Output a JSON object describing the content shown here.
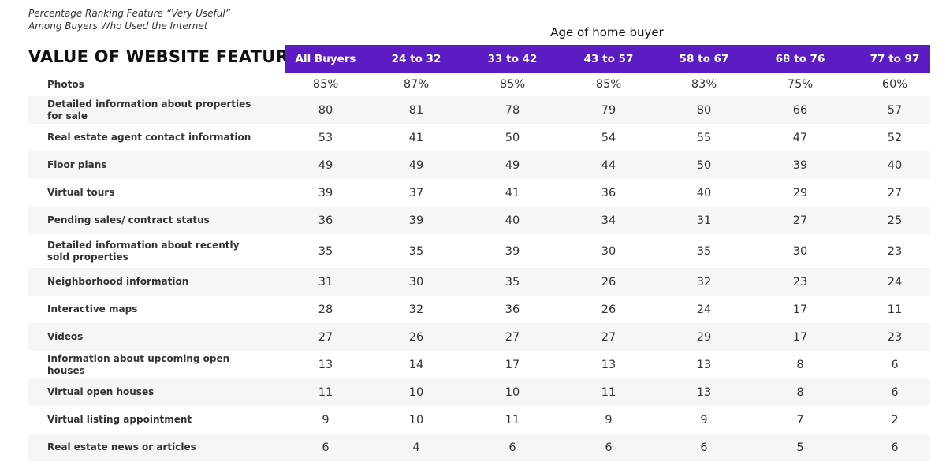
{
  "subtitle": [
    "Percentage Ranking Feature “Very Useful”",
    "Among Buyers Who Used the Internet"
  ],
  "title": "VALUE OF WEBSITE FEATURES",
  "column_group": "Age of home buyer",
  "columns": [
    "All Buyers",
    "24 to 32",
    "33 to 42",
    "43 to 57",
    "58 to 67",
    "68 to 76",
    "77 to 97"
  ],
  "rows": [
    {
      "label": "Photos",
      "values": [
        "85%",
        "87%",
        "85%",
        "85%",
        "83%",
        "75%",
        "60%"
      ]
    },
    {
      "label": "Detailed information about properties for sale",
      "values": [
        "80",
        "81",
        "78",
        "79",
        "80",
        "66",
        "57"
      ]
    },
    {
      "label": "Real estate agent contact information",
      "values": [
        "53",
        "41",
        "50",
        "54",
        "55",
        "47",
        "52"
      ]
    },
    {
      "label": "Floor plans",
      "values": [
        "49",
        "49",
        "49",
        "44",
        "50",
        "39",
        "40"
      ]
    },
    {
      "label": "Virtual tours",
      "values": [
        "39",
        "37",
        "41",
        "36",
        "40",
        "29",
        "27"
      ]
    },
    {
      "label": "Pending sales/ contract status",
      "values": [
        "36",
        "39",
        "40",
        "34",
        "31",
        "27",
        "25"
      ]
    },
    {
      "label": "Detailed information about recently sold properties",
      "values": [
        "35",
        "35",
        "39",
        "30",
        "35",
        "30",
        "23"
      ]
    },
    {
      "label": "Neighborhood information",
      "values": [
        "31",
        "30",
        "35",
        "26",
        "32",
        "23",
        "24"
      ]
    },
    {
      "label": "Interactive maps",
      "values": [
        "28",
        "32",
        "36",
        "26",
        "24",
        "17",
        "11"
      ]
    },
    {
      "label": "Videos",
      "values": [
        "27",
        "26",
        "27",
        "27",
        "29",
        "17",
        "23"
      ]
    },
    {
      "label": "Information about upcoming open houses",
      "values": [
        "13",
        "14",
        "17",
        "13",
        "13",
        "8",
        "6"
      ]
    },
    {
      "label": "Virtual open houses",
      "values": [
        "11",
        "10",
        "10",
        "11",
        "13",
        "8",
        "6"
      ]
    },
    {
      "label": "Virtual listing appointment",
      "values": [
        "9",
        "10",
        "11",
        "9",
        "9",
        "7",
        "2"
      ]
    },
    {
      "label": "Real estate news or articles",
      "values": [
        "6",
        "4",
        "6",
        "6",
        "6",
        "5",
        "6"
      ]
    }
  ]
}
